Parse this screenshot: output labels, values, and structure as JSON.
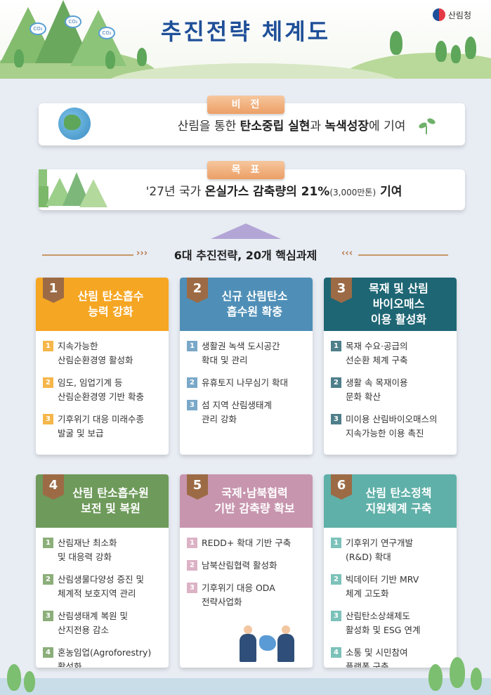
{
  "header": {
    "title": "추진전략  체계도",
    "logo_text": "산림청",
    "co2_label": "CO₂"
  },
  "vision": {
    "label": "비전",
    "text_pre": "산림을 통한 ",
    "text_b1": "탄소중립 실현",
    "text_mid": "과 ",
    "text_b2": "녹색성장",
    "text_post": "에 기여"
  },
  "goal": {
    "label": "목표",
    "text_pre": "'27년 국가 ",
    "text_b1": "온실가스 감축량의 21%",
    "text_small": "(3,000만톤)",
    "text_b2": " 기여"
  },
  "section": {
    "label": "6대 추진전략, 20개 핵심과제"
  },
  "colors": {
    "orange": "#f5a623",
    "blue": "#4f8fb7",
    "teal": "#1e6674",
    "green": "#6e9a5b",
    "pink": "#c795ae",
    "mint": "#5fb0a8"
  },
  "strategies": [
    {
      "num": "1",
      "title": [
        "산림 탄소흡수",
        "능력 강화"
      ],
      "items": [
        [
          "지속가능한",
          "산림순환경영 활성화"
        ],
        [
          "임도, 임업기계 등",
          "산림순환경영 기반 확충"
        ],
        [
          "기후위기 대응 미래수종",
          "발굴 및 보급"
        ]
      ]
    },
    {
      "num": "2",
      "title": [
        "신규 산림탄소",
        "흡수원 확충"
      ],
      "items": [
        [
          "생활권 녹색 도시공간",
          "확대 및 관리"
        ],
        [
          "유휴토지 나무심기 확대"
        ],
        [
          "섬 지역 산림생태계",
          "관리 강화"
        ]
      ]
    },
    {
      "num": "3",
      "title": [
        "목재 및 산림",
        "바이오매스",
        "이용  활성화"
      ],
      "items": [
        [
          "목재 수요·공급의",
          "선순환 체계 구축"
        ],
        [
          "생활 속 목재이용",
          "문화 확산"
        ],
        [
          "미이용 산림바이오매스의",
          "지속가능한 이용 촉진"
        ]
      ]
    },
    {
      "num": "4",
      "title": [
        "산림 탄소흡수원",
        "보전 및 복원"
      ],
      "items": [
        [
          "산림재난 최소화",
          "및 대응력 강화"
        ],
        [
          "산림생물다양성 증진 및",
          "체계적 보호지역 관리"
        ],
        [
          "산림생태계 복원 및",
          "산지전용 감소"
        ],
        [
          "혼농임업(Agroforestry)",
          "활성화"
        ]
      ]
    },
    {
      "num": "5",
      "title": [
        "국제·남북협력",
        "기반 감축량 확보"
      ],
      "items": [
        [
          "REDD+ 확대 기반 구축"
        ],
        [
          "남북산림협력 활성화"
        ],
        [
          "기후위기 대응 ODA",
          "전략사업화"
        ]
      ]
    },
    {
      "num": "6",
      "title": [
        "산림 탄소정책",
        "지원체계 구축"
      ],
      "items": [
        [
          "기후위기 연구개발",
          "(R&D) 확대"
        ],
        [
          "빅데이터 기반 MRV",
          "체계 고도화"
        ],
        [
          "산림탄소상쇄제도",
          "활성화 및 ESG 연계"
        ],
        [
          "소통 및 시민참여",
          "플랫폼 구축"
        ]
      ]
    }
  ]
}
